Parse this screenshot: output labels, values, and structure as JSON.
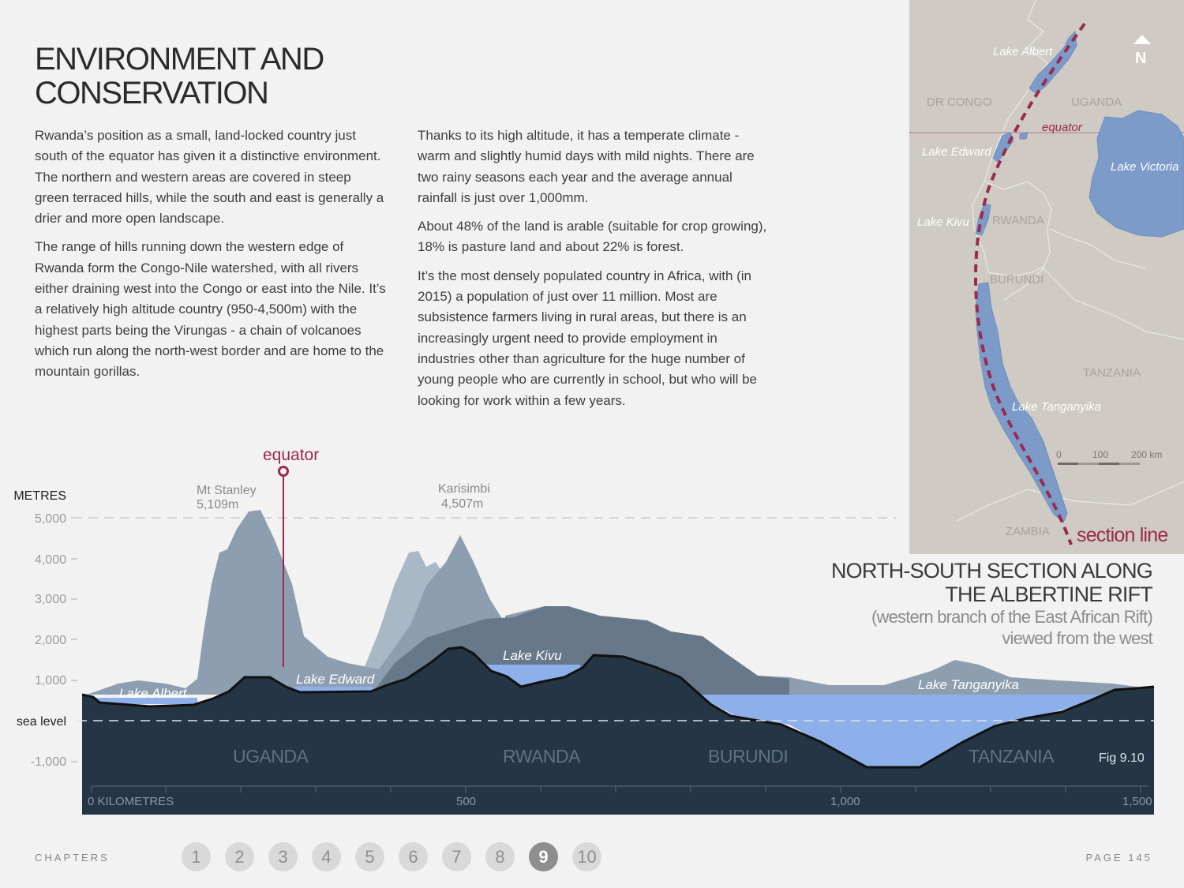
{
  "title_line1": "ENVIRONMENT AND",
  "title_line2": "CONSERVATION",
  "column1": [
    "Rwanda’s position as a small, land-locked country just south of the equator has given it a distinctive environment. The northern and western areas are covered in steep green terraced hills, while the south and east is generally a drier and more open landscape.",
    "The range of hills running down the western edge of Rwanda form the Congo-Nile watershed, with all rivers either draining west into the Congo or east into the Nile. It’s a relatively high altitude country (950-4,500m) with the highest parts being the Virungas - a chain of volcanoes which run along the north-west border and are home to the mountain gorillas."
  ],
  "column2": [
    "Thanks to its high altitude, it has a temperate climate - warm and slightly humid days with mild nights. There are two rainy seasons each year and the average annual rainfall is just over 1,000mm.",
    "About 48% of the land is arable (suitable for crop growing), 18% is pasture land and about 22% is forest.",
    "It’s the most densely populated country in Africa, with (in 2015) a population of just over 11 million. Most are subsistence farmers living in rural areas, but there is an increasingly urgent need to provide employment in industries other than agriculture for the huge number of young people who are currently in school, but who will be looking for work within a few years."
  ],
  "map": {
    "lakes": [
      "Lake Albert",
      "Lake Edward",
      "Lake Kivu",
      "Lake Victoria",
      "Lake Tanganyika"
    ],
    "countries": [
      "DR CONGO",
      "UGANDA",
      "RWANDA",
      "BURUNDI",
      "TANZANIA",
      "ZAMBIA"
    ],
    "equator": "equator",
    "north": "N",
    "scale": [
      "0",
      "100",
      "200 km"
    ],
    "section_line": "section line"
  },
  "section_title": {
    "line1": "NORTH-SOUTH SECTION ALONG",
    "line2": "THE ALBERTINE RIFT",
    "line3": "(western branch of the East African Rift)",
    "line4": "viewed from the west"
  },
  "profile": {
    "y_axis_title": "METRES",
    "y_ticks": [
      "5,000",
      "4,000",
      "3,000",
      "2,000",
      "1,000",
      "-1,000"
    ],
    "sea_level": "sea level",
    "x_ticks": [
      "0 KILOMETRES",
      "500",
      "1,000",
      "1,500"
    ],
    "equator": "equator",
    "peaks": [
      {
        "name": "Mt Stanley",
        "height": "5,109m"
      },
      {
        "name": "Karisimbi",
        "height": "4,507m"
      }
    ],
    "lakes": [
      "Lake Albert",
      "Lake Edward",
      "Lake Kivu",
      "Lake Tanganyika"
    ],
    "countries": [
      "UGANDA",
      "RWANDA",
      "BURUNDI",
      "TANZANIA"
    ],
    "fig": "Fig 9.10"
  },
  "footer": {
    "chapters_label": "CHAPTERS",
    "chapters": [
      "1",
      "2",
      "3",
      "4",
      "5",
      "6",
      "7",
      "8",
      "9",
      "10"
    ],
    "active_chapter": "9",
    "page": "PAGE 145"
  },
  "colors": {
    "accent": "#9a2a4e",
    "dark_ground": "#243545",
    "water": "#8db0ea",
    "map_water": "#7c9bc9"
  }
}
